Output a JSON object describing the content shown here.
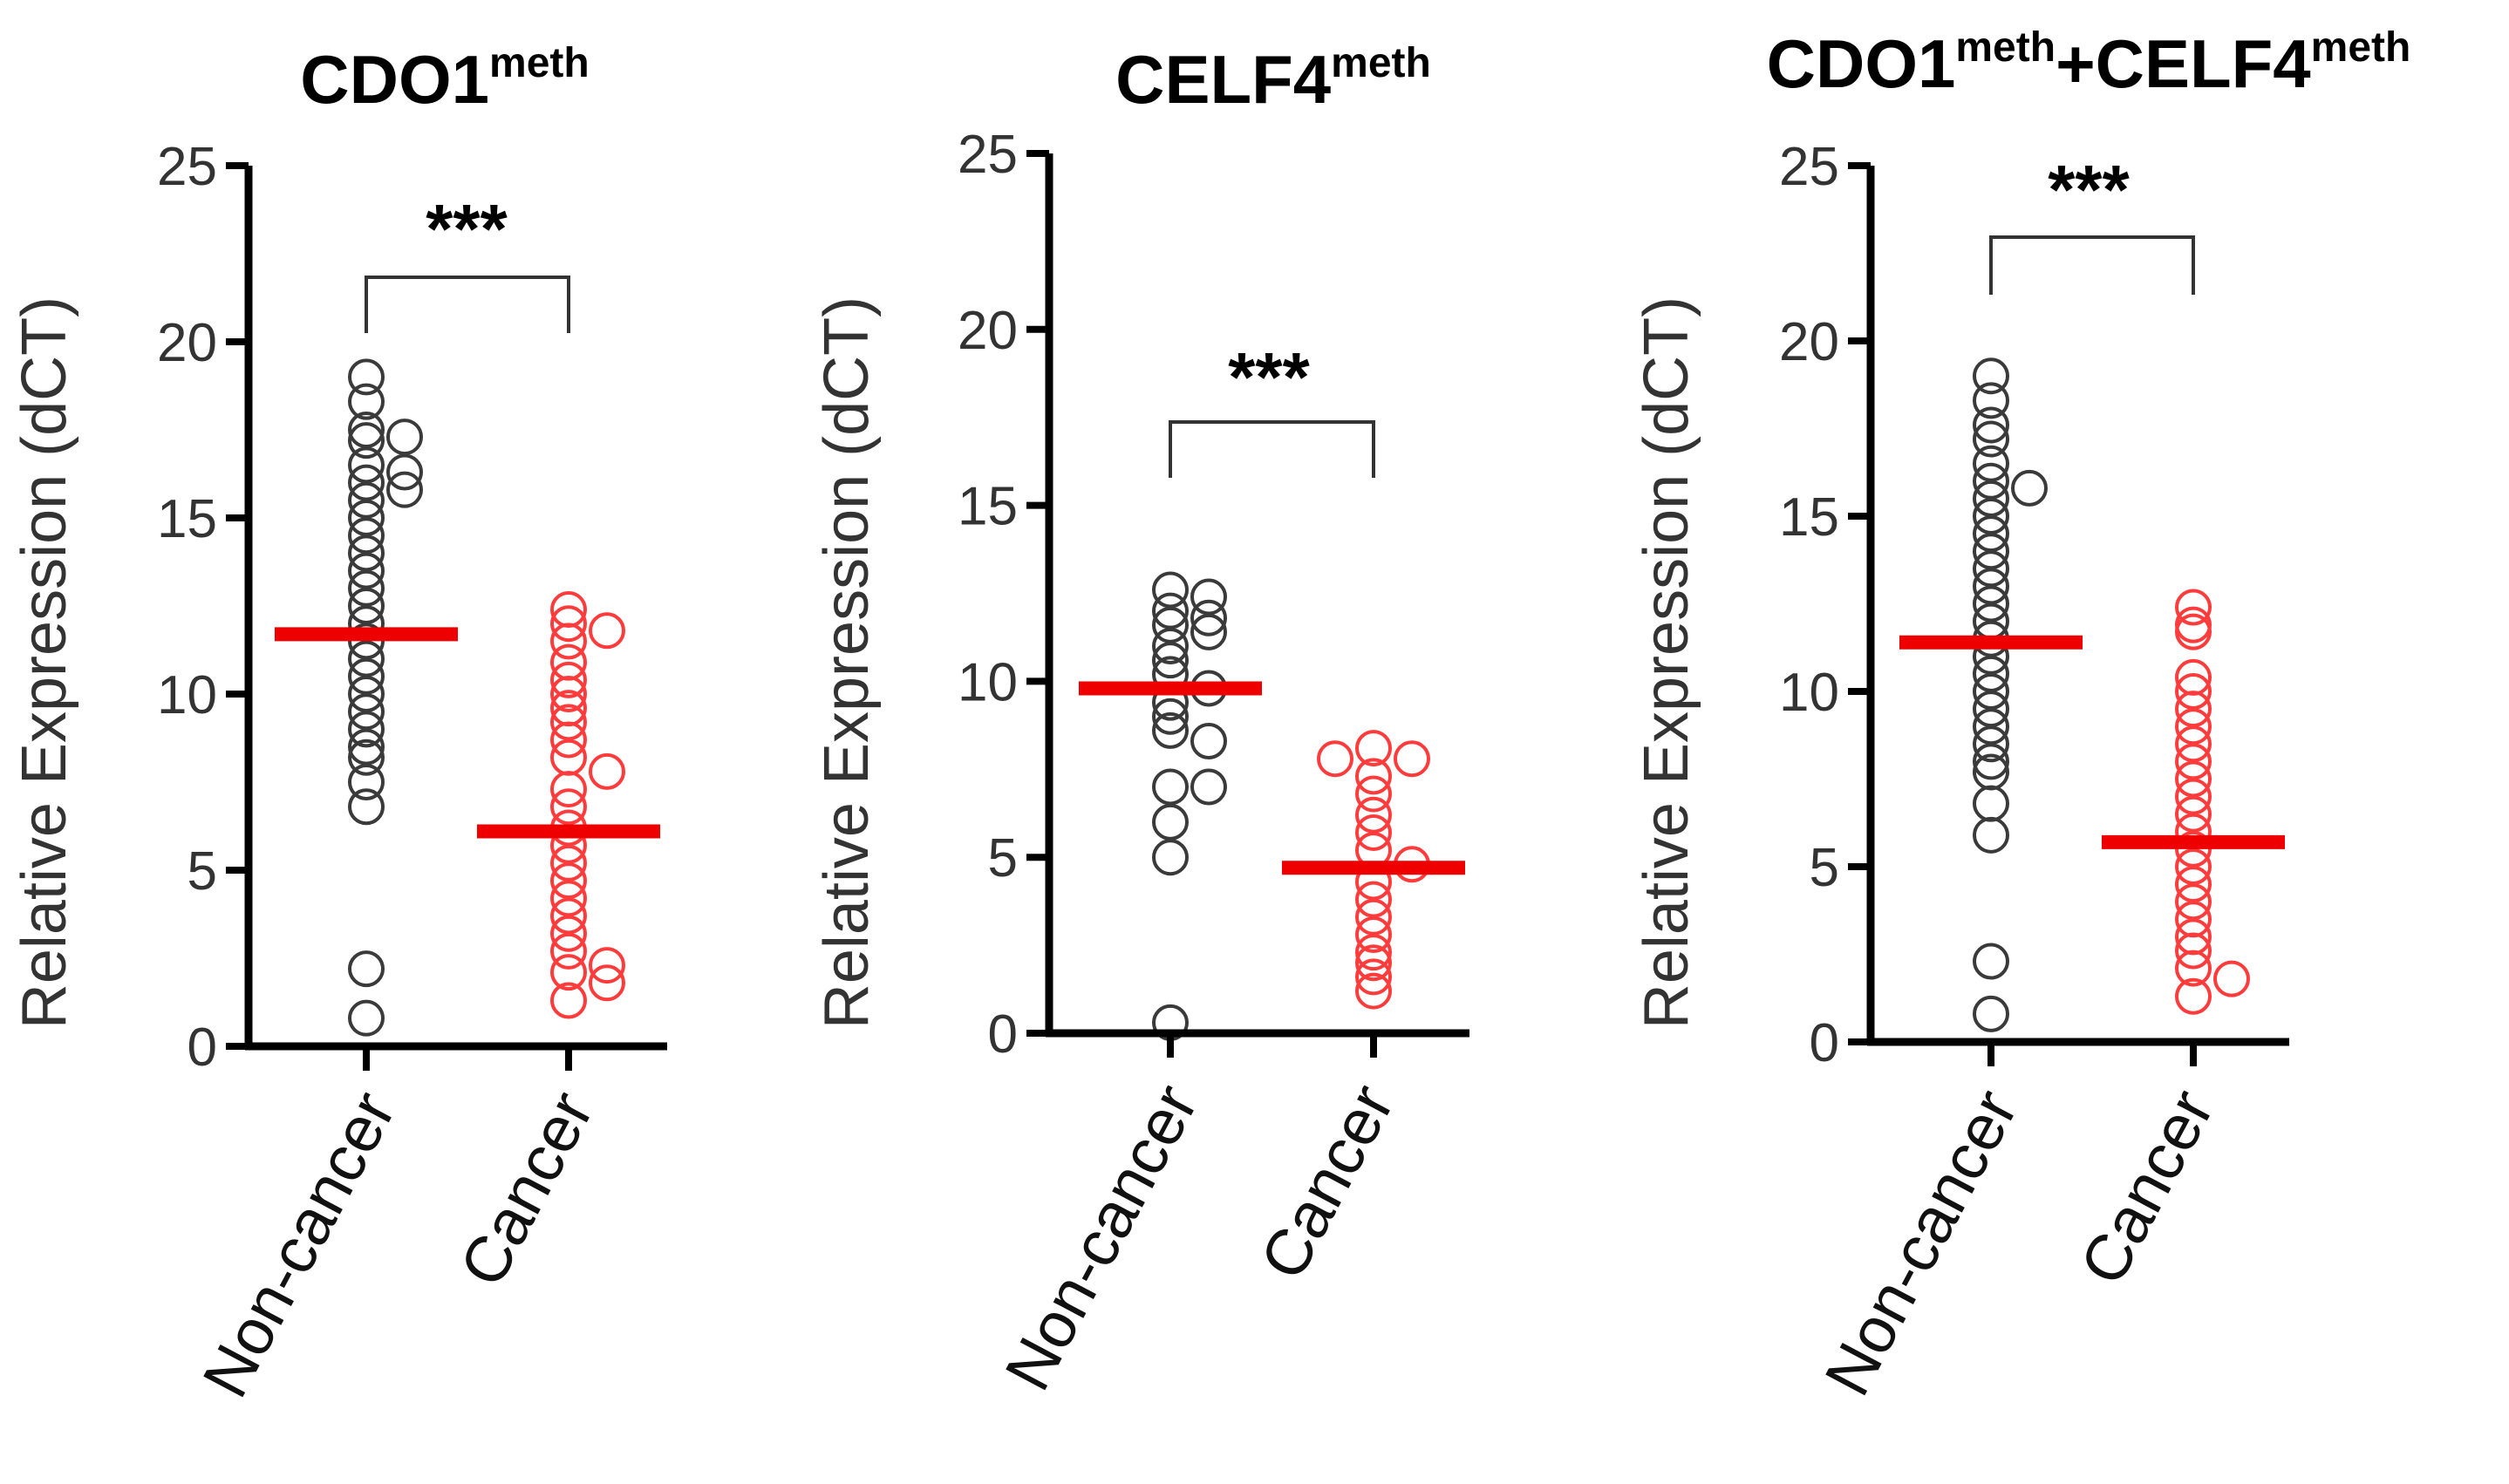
{
  "colors": {
    "noncancer_points": "#3a3a3a",
    "cancer_points": "#ff3b3b",
    "mean_bar": "#ee0000",
    "axis": "#000000"
  },
  "chart_data": [
    {
      "type": "scatter",
      "title": {
        "main": "CDO1",
        "sup": "meth"
      },
      "ylabel": "Relative Expression (dCT)",
      "ylim": [
        0,
        25
      ],
      "yticks": [
        "0",
        "5",
        "10",
        "15",
        "20",
        "25"
      ],
      "categories": [
        "Non-cancer",
        "Cancer"
      ],
      "significance": "***",
      "series": [
        {
          "name": "Non-cancer",
          "mean": 11.7,
          "values": [
            19.0,
            18.3,
            17.5,
            17.2,
            17.3,
            16.5,
            16.3,
            16.0,
            15.8,
            15.5,
            15.0,
            14.5,
            14.0,
            13.5,
            13.0,
            12.5,
            12.0,
            11.5,
            11.0,
            10.5,
            10.0,
            9.5,
            9.0,
            8.5,
            8.2,
            7.5,
            6.8,
            2.2,
            0.8
          ]
        },
        {
          "name": "Cancer",
          "mean": 6.1,
          "values": [
            12.4,
            12.0,
            11.8,
            11.5,
            10.9,
            10.4,
            10.0,
            9.6,
            9.2,
            8.7,
            8.2,
            7.8,
            7.3,
            6.8,
            6.2,
            5.7,
            5.2,
            4.7,
            4.2,
            3.7,
            3.2,
            2.7,
            2.3,
            2.1,
            1.8,
            1.3
          ]
        }
      ]
    },
    {
      "type": "scatter",
      "title": {
        "main": "CELF4",
        "sup": "meth"
      },
      "ylabel": "Relative Expression (dCT)",
      "ylim": [
        0,
        25
      ],
      "yticks": [
        "0",
        "5",
        "10",
        "15",
        "20",
        "25"
      ],
      "categories": [
        "Non-cancer",
        "Cancer"
      ],
      "significance": "***",
      "series": [
        {
          "name": "Non-cancer",
          "mean": 9.8,
          "values": [
            12.6,
            12.4,
            12.0,
            11.8,
            11.6,
            11.4,
            11.0,
            10.6,
            10.2,
            9.8,
            9.4,
            9.0,
            8.6,
            8.3,
            7.0,
            7.0,
            6.0,
            5.0,
            0.3
          ]
        },
        {
          "name": "Cancer",
          "mean": 4.7,
          "values": [
            8.1,
            7.8,
            7.8,
            7.3,
            6.8,
            6.2,
            5.7,
            5.2,
            4.8,
            4.3,
            3.8,
            3.3,
            2.8,
            2.3,
            2.0,
            1.6,
            1.2
          ]
        }
      ]
    },
    {
      "type": "scatter",
      "title": {
        "main1": "CDO1",
        "sup1": "meth",
        "plus": "+",
        "main2": "CELF4",
        "sup2": "meth"
      },
      "ylabel": "Relative Expression (dCT)",
      "ylim": [
        0,
        25
      ],
      "yticks": [
        "0",
        "5",
        "10",
        "15",
        "20",
        "25"
      ],
      "categories": [
        "Non-cancer",
        "Cancer"
      ],
      "significance": "***",
      "series": [
        {
          "name": "Non-cancer",
          "mean": 11.4,
          "values": [
            19.0,
            18.3,
            17.6,
            17.2,
            16.5,
            16.0,
            15.8,
            15.5,
            15.0,
            14.5,
            14.0,
            13.5,
            13.0,
            12.5,
            12.0,
            11.5,
            11.0,
            10.5,
            10.0,
            9.5,
            9.0,
            8.5,
            8.0,
            7.7,
            6.8,
            5.9,
            2.3,
            0.8
          ]
        },
        {
          "name": "Cancer",
          "mean": 5.7,
          "values": [
            12.4,
            11.9,
            11.7,
            10.4,
            10.0,
            9.5,
            9.0,
            8.5,
            8.0,
            7.5,
            7.0,
            6.5,
            6.0,
            5.5,
            5.0,
            4.5,
            4.0,
            3.5,
            3.0,
            2.6,
            2.1,
            1.8,
            1.3
          ]
        }
      ]
    }
  ]
}
